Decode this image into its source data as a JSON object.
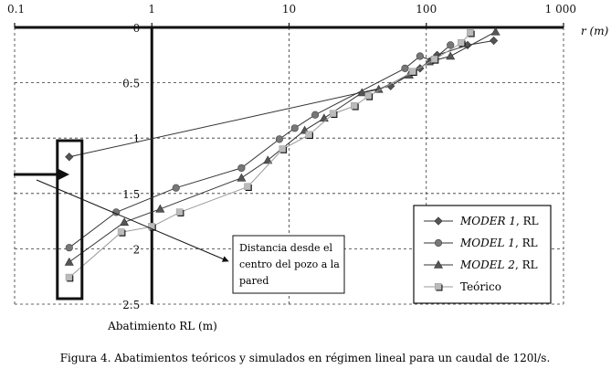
{
  "chart_data": {
    "type": "scatter",
    "x_scale": "log",
    "y_inverted": true,
    "xlim": [
      0.1,
      1000
    ],
    "ylim": [
      0,
      2.5
    ],
    "x_ticks": [
      {
        "value": 0.1,
        "label": "0.1"
      },
      {
        "value": 1,
        "label": "1"
      },
      {
        "value": 10,
        "label": "10"
      },
      {
        "value": 100,
        "label": "100"
      },
      {
        "value": 1000,
        "label": "1 000"
      }
    ],
    "y_ticks": [
      {
        "value": 0,
        "label": "0"
      },
      {
        "value": 0.5,
        "label": "0.5"
      },
      {
        "value": 1,
        "label": "1"
      },
      {
        "value": 1.5,
        "label": "1.5"
      },
      {
        "value": 2,
        "label": "2"
      },
      {
        "value": 2.5,
        "label": "2.5"
      }
    ],
    "xlabel": "r (m)",
    "ylabel": "Abatimiento RL (m)",
    "grid": "dashed",
    "legend_position": "bottom-right",
    "series": [
      {
        "name": "MODER 1, RL",
        "name_italic": "MODER 1",
        "name_suffix": ", RL",
        "marker": "diamond",
        "color": "#555555",
        "points": [
          {
            "x": 0.25,
            "y": 1.17
          },
          {
            "x": 55,
            "y": 0.53
          },
          {
            "x": 90,
            "y": 0.37
          },
          {
            "x": 120,
            "y": 0.25
          },
          {
            "x": 200,
            "y": 0.16
          },
          {
            "x": 310,
            "y": 0.12
          }
        ]
      },
      {
        "name": "MODEL 1, RL",
        "name_italic": "MODEL 1",
        "name_suffix": ", RL",
        "marker": "circle",
        "color": "#777777",
        "points": [
          {
            "x": 0.25,
            "y": 1.99
          },
          {
            "x": 0.55,
            "y": 1.67
          },
          {
            "x": 1.5,
            "y": 1.45
          },
          {
            "x": 4.5,
            "y": 1.27
          },
          {
            "x": 8.5,
            "y": 1.01
          },
          {
            "x": 11,
            "y": 0.91
          },
          {
            "x": 15.5,
            "y": 0.79
          },
          {
            "x": 70,
            "y": 0.37
          },
          {
            "x": 90,
            "y": 0.26
          },
          {
            "x": 110,
            "y": 0.3
          },
          {
            "x": 150,
            "y": 0.16
          }
        ]
      },
      {
        "name": "MODEL 2, RL",
        "name_italic": "MODEL 2",
        "name_suffix": ", RL",
        "marker": "triangle",
        "color": "#555555",
        "points": [
          {
            "x": 0.25,
            "y": 2.12
          },
          {
            "x": 0.63,
            "y": 1.76
          },
          {
            "x": 1.15,
            "y": 1.64
          },
          {
            "x": 4.5,
            "y": 1.36
          },
          {
            "x": 7,
            "y": 1.2
          },
          {
            "x": 13,
            "y": 0.93
          },
          {
            "x": 18,
            "y": 0.82
          },
          {
            "x": 34,
            "y": 0.59
          },
          {
            "x": 45,
            "y": 0.56
          },
          {
            "x": 75,
            "y": 0.43
          },
          {
            "x": 105,
            "y": 0.31
          },
          {
            "x": 150,
            "y": 0.26
          },
          {
            "x": 320,
            "y": 0.04
          }
        ]
      },
      {
        "name": "Teórico",
        "marker": "square",
        "color": "#bbbbbb",
        "points": [
          {
            "x": 0.25,
            "y": 2.26
          },
          {
            "x": 0.6,
            "y": 1.85
          },
          {
            "x": 1.0,
            "y": 1.8
          },
          {
            "x": 1.6,
            "y": 1.67
          },
          {
            "x": 5,
            "y": 1.44
          },
          {
            "x": 9,
            "y": 1.1
          },
          {
            "x": 14,
            "y": 0.97
          },
          {
            "x": 21,
            "y": 0.78
          },
          {
            "x": 30,
            "y": 0.71
          },
          {
            "x": 38,
            "y": 0.62
          },
          {
            "x": 80,
            "y": 0.4
          },
          {
            "x": 115,
            "y": 0.29
          },
          {
            "x": 180,
            "y": 0.14
          },
          {
            "x": 210,
            "y": 0.05
          }
        ]
      }
    ],
    "annotation": {
      "text_lines": [
        "Distancia desde el",
        "centro del pozo a la",
        "pared"
      ]
    }
  },
  "caption": "Figura 4. Abatimientos teóricos y simulados en régimen lineal para un caudal de 120l/s."
}
